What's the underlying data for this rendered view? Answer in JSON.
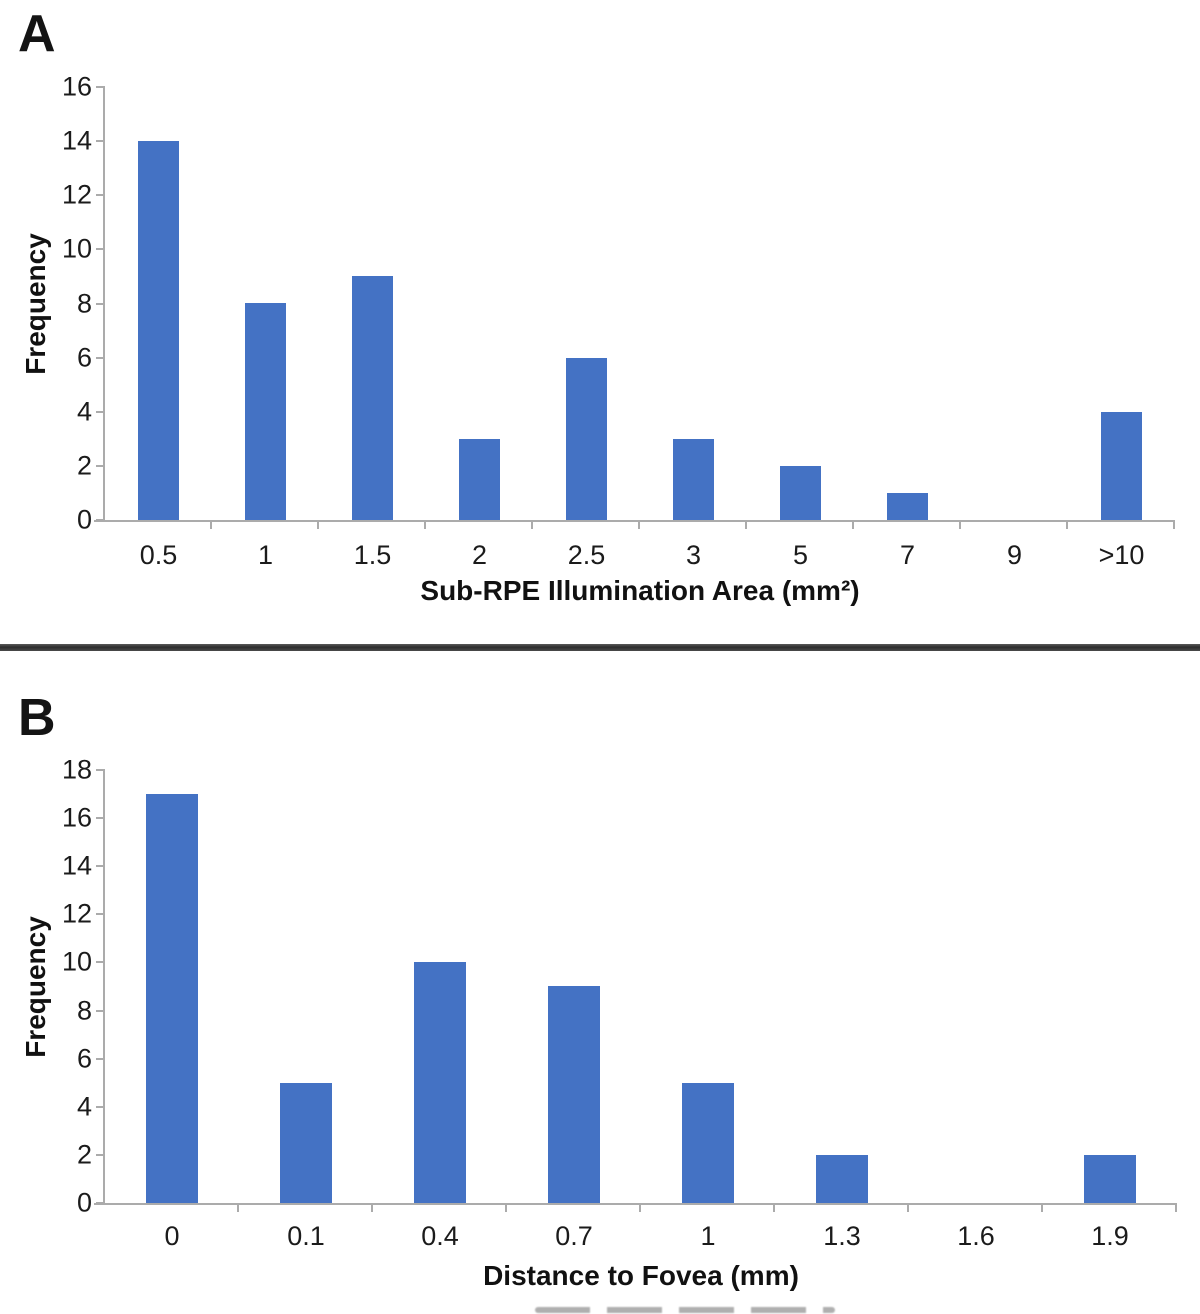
{
  "figure": {
    "panels": [
      {
        "letter": "A"
      },
      {
        "letter": "B"
      }
    ]
  },
  "chart_data": [
    {
      "type": "bar",
      "panel": "A",
      "title": "",
      "categories": [
        "0.5",
        "1",
        "1.5",
        "2",
        "2.5",
        "3",
        "5",
        "7",
        "9",
        ">10"
      ],
      "values": [
        14,
        8,
        9,
        3,
        6,
        3,
        2,
        1,
        0,
        4
      ],
      "xlabel": "Sub-RPE Illumination Area (mm²)",
      "ylabel": "Frequency",
      "ylim": [
        0,
        16
      ],
      "ytick_step": 2,
      "grid": false,
      "legend_position": "none",
      "bar_color": "#4472C4",
      "axis_color": "#ababab",
      "text_color": "#1b1b1b",
      "bar_fraction": 0.38
    },
    {
      "type": "bar",
      "panel": "B",
      "title": "",
      "categories": [
        "0",
        "0.1",
        "0.4",
        "0.7",
        "1",
        "1.3",
        "1.6",
        "1.9"
      ],
      "values": [
        17,
        5,
        10,
        9,
        5,
        2,
        0,
        2
      ],
      "xlabel": "Distance to Fovea (mm)",
      "ylabel": "Frequency",
      "ylim": [
        0,
        18
      ],
      "ytick_step": 2,
      "grid": false,
      "legend_position": "none",
      "bar_color": "#4472C4",
      "axis_color": "#ababab",
      "text_color": "#1b1b1b",
      "bar_fraction": 0.39
    }
  ]
}
